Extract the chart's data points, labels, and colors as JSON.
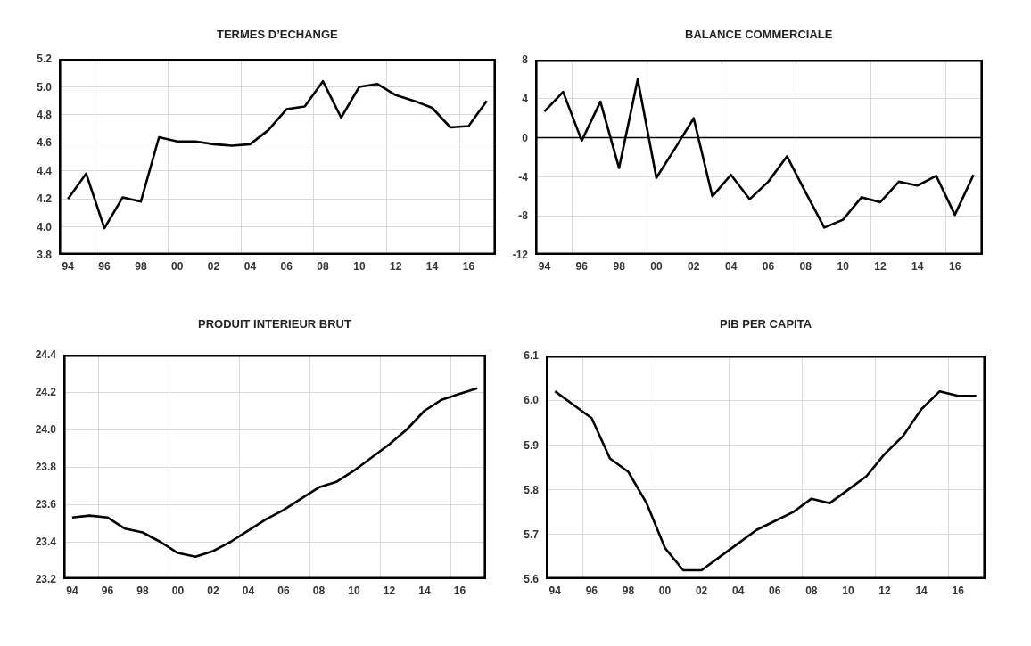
{
  "chart_data": [
    {
      "type": "line",
      "title": "TERMES D’ECHANGE",
      "x": [
        1994,
        1995,
        1996,
        1997,
        1998,
        1999,
        2000,
        2001,
        2002,
        2003,
        2004,
        2005,
        2006,
        2007,
        2008,
        2009,
        2010,
        2011,
        2012,
        2013,
        2014,
        2015,
        2016,
        2017
      ],
      "values": [
        4.2,
        4.38,
        3.99,
        4.21,
        4.18,
        4.64,
        4.61,
        4.61,
        4.59,
        4.58,
        4.59,
        4.69,
        4.84,
        4.86,
        5.04,
        4.78,
        5.0,
        5.02,
        4.94,
        4.9,
        4.85,
        4.71,
        4.72,
        4.9
      ],
      "color": "#000000",
      "xlim": [
        1993.5,
        2017.5
      ],
      "xticks": [
        {
          "value": 1994,
          "label": "94"
        },
        {
          "value": 1996,
          "label": "96"
        },
        {
          "value": 1998,
          "label": "98"
        },
        {
          "value": 2000,
          "label": "00"
        },
        {
          "value": 2002,
          "label": "02"
        },
        {
          "value": 2004,
          "label": "04"
        },
        {
          "value": 2006,
          "label": "06"
        },
        {
          "value": 2008,
          "label": "08"
        },
        {
          "value": 2010,
          "label": "10"
        },
        {
          "value": 2012,
          "label": "12"
        },
        {
          "value": 2014,
          "label": "14"
        },
        {
          "value": 2016,
          "label": "16"
        },
        {
          "value": 1995.5,
          "label": null
        },
        {
          "value": 1999.5,
          "label": null
        },
        {
          "value": 2003.5,
          "label": null
        },
        {
          "value": 2007.5,
          "label": null
        },
        {
          "value": 2011.5,
          "label": null
        },
        {
          "value": 2015.5,
          "label": null
        }
      ],
      "ylim": [
        3.8,
        5.2
      ],
      "yticks": [
        3.8,
        {
          "value": 4,
          "label": "4.0"
        },
        4.2,
        4.4,
        4.6,
        4.8,
        {
          "value": 5,
          "label": "5.0"
        },
        5.2
      ],
      "grid": true
    },
    {
      "type": "line",
      "title": "BALANCE COMMERCIALE",
      "x": [
        1994,
        1995,
        1996,
        1997,
        1998,
        1999,
        2000,
        2001,
        2002,
        2003,
        2004,
        2005,
        2006,
        2007,
        2008,
        2009,
        2010,
        2011,
        2012,
        2013,
        2014,
        2015,
        2016,
        2017
      ],
      "values": [
        2.7,
        4.7,
        -0.3,
        3.7,
        -3.1,
        6.0,
        -4.1,
        -1.1,
        2.0,
        -6.0,
        -3.8,
        -6.3,
        -4.5,
        -1.9,
        -5.6,
        -9.2,
        -8.4,
        -6.1,
        -6.6,
        -4.5,
        -4.9,
        -3.9,
        -7.9,
        -3.8
      ],
      "color": "#000000",
      "xlim": [
        1993.5,
        2017.5
      ],
      "xticks": [
        {
          "value": 1994,
          "label": "94"
        },
        {
          "value": 1996,
          "label": "96"
        },
        {
          "value": 1998,
          "label": "98"
        },
        {
          "value": 2000,
          "label": "00"
        },
        {
          "value": 2002,
          "label": "02"
        },
        {
          "value": 2004,
          "label": "04"
        },
        {
          "value": 2006,
          "label": "06"
        },
        {
          "value": 2008,
          "label": "08"
        },
        {
          "value": 2010,
          "label": "10"
        },
        {
          "value": 2012,
          "label": "12"
        },
        {
          "value": 2014,
          "label": "14"
        },
        {
          "value": 2016,
          "label": "16"
        },
        {
          "value": 1995.5,
          "label": null
        },
        {
          "value": 1999.5,
          "label": null
        },
        {
          "value": 2003.5,
          "label": null
        },
        {
          "value": 2007.5,
          "label": null
        },
        {
          "value": 2011.5,
          "label": null
        },
        {
          "value": 2015.5,
          "label": null
        }
      ],
      "ylim": [
        -12,
        8
      ],
      "yticks": [
        -12,
        -8,
        -4,
        0,
        4,
        8
      ],
      "grid": true,
      "ref_lines": [
        {
          "axis": "y",
          "value": 0,
          "color": "#000000"
        }
      ]
    },
    {
      "type": "line",
      "title": "PRODUIT INTERIEUR BRUT",
      "x": [
        1994,
        1995,
        1996,
        1997,
        1998,
        1999,
        2000,
        2001,
        2002,
        2003,
        2004,
        2005,
        2006,
        2007,
        2008,
        2009,
        2010,
        2011,
        2012,
        2013,
        2014,
        2015,
        2016,
        2017
      ],
      "values": [
        23.53,
        23.54,
        23.53,
        23.47,
        23.45,
        23.4,
        23.34,
        23.32,
        23.35,
        23.4,
        23.46,
        23.52,
        23.57,
        23.63,
        23.69,
        23.72,
        23.78,
        23.85,
        23.92,
        24.0,
        24.1,
        24.16,
        24.19,
        24.22
      ],
      "color": "#000000",
      "xlim": [
        1993.5,
        2017.5
      ],
      "xticks": [
        {
          "value": 1994,
          "label": "94"
        },
        {
          "value": 1996,
          "label": "96"
        },
        {
          "value": 1998,
          "label": "98"
        },
        {
          "value": 2000,
          "label": "00"
        },
        {
          "value": 2002,
          "label": "02"
        },
        {
          "value": 2004,
          "label": "04"
        },
        {
          "value": 2006,
          "label": "06"
        },
        {
          "value": 2008,
          "label": "08"
        },
        {
          "value": 2010,
          "label": "10"
        },
        {
          "value": 2012,
          "label": "12"
        },
        {
          "value": 2014,
          "label": "14"
        },
        {
          "value": 2016,
          "label": "16"
        },
        {
          "value": 1995.5,
          "label": null
        },
        {
          "value": 1999.5,
          "label": null
        },
        {
          "value": 2003.5,
          "label": null
        },
        {
          "value": 2007.5,
          "label": null
        },
        {
          "value": 2011.5,
          "label": null
        },
        {
          "value": 2015.5,
          "label": null
        }
      ],
      "ylim": [
        23.2,
        24.4
      ],
      "yticks": [
        23.2,
        23.4,
        23.6,
        23.8,
        {
          "value": 24,
          "label": "24.0"
        },
        24.2,
        24.4
      ],
      "grid": true
    },
    {
      "type": "line",
      "title": "PIB PER CAPITA",
      "x": [
        1994,
        1995,
        1996,
        1997,
        1998,
        1999,
        2000,
        2001,
        2002,
        2003,
        2004,
        2005,
        2006,
        2007,
        2008,
        2009,
        2010,
        2011,
        2012,
        2013,
        2014,
        2015,
        2016,
        2017
      ],
      "values": [
        6.02,
        5.99,
        5.96,
        5.87,
        5.84,
        5.77,
        5.67,
        5.62,
        5.62,
        5.65,
        5.68,
        5.71,
        5.73,
        5.75,
        5.78,
        5.77,
        5.8,
        5.83,
        5.88,
        5.92,
        5.98,
        6.02,
        6.01,
        6.01
      ],
      "color": "#000000",
      "xlim": [
        1993.5,
        2017.5
      ],
      "xticks": [
        {
          "value": 1994,
          "label": "94"
        },
        {
          "value": 1996,
          "label": "96"
        },
        {
          "value": 1998,
          "label": "98"
        },
        {
          "value": 2000,
          "label": "00"
        },
        {
          "value": 2002,
          "label": "02"
        },
        {
          "value": 2004,
          "label": "04"
        },
        {
          "value": 2006,
          "label": "06"
        },
        {
          "value": 2008,
          "label": "08"
        },
        {
          "value": 2010,
          "label": "10"
        },
        {
          "value": 2012,
          "label": "12"
        },
        {
          "value": 2014,
          "label": "14"
        },
        {
          "value": 2016,
          "label": "16"
        },
        {
          "value": 1995.5,
          "label": null
        },
        {
          "value": 1999.5,
          "label": null
        },
        {
          "value": 2003.5,
          "label": null
        },
        {
          "value": 2007.5,
          "label": null
        },
        {
          "value": 2011.5,
          "label": null
        },
        {
          "value": 2015.5,
          "label": null
        }
      ],
      "ylim": [
        5.6,
        6.1
      ],
      "yticks": [
        5.6,
        5.7,
        5.8,
        5.9,
        {
          "value": 6,
          "label": "6.0"
        },
        6.1
      ],
      "grid": true
    }
  ]
}
